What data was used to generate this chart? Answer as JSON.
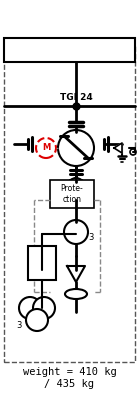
{
  "weight_text": "weight = 410 kg\n/ 435 kg",
  "label_TGI": "TGI 24",
  "label_M": "M",
  "label_prot": "Prote-\nction",
  "label_3a": "3",
  "label_3b": "3",
  "bg_color": "#ffffff",
  "line_color": "#000000",
  "dashed_color": "#888888",
  "red_color": "#dd0000",
  "fig_width": 1.39,
  "fig_height": 4.0,
  "dpi": 100
}
